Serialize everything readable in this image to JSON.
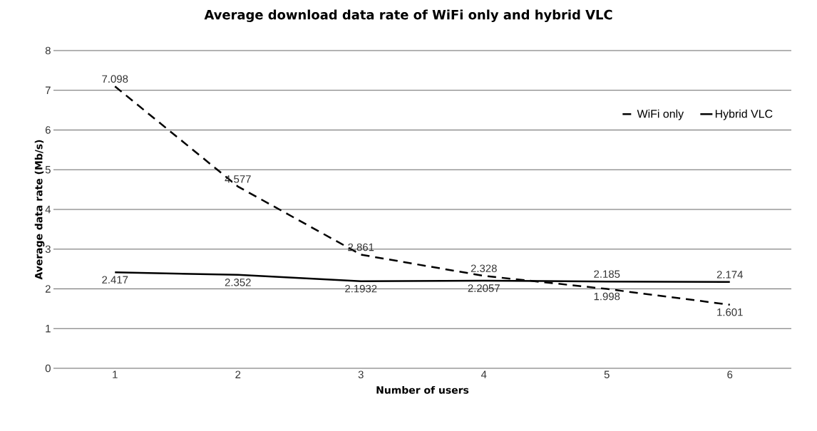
{
  "chart_data": {
    "type": "line",
    "title": "Average download data rate of WiFi only and hybrid VLC",
    "xlabel": "Number of users",
    "ylabel": "Average data rate (Mb/s)",
    "categories": [
      "1",
      "2",
      "3",
      "4",
      "5",
      "6"
    ],
    "series": [
      {
        "name": "WiFi only",
        "color": "#000000",
        "line_style": "dashed",
        "values": [
          7.098,
          4.577,
          2.861,
          2.328,
          1.998,
          1.601
        ]
      },
      {
        "name": "Hybrid VLC",
        "color": "#000000",
        "line_style": "solid",
        "values": [
          2.417,
          2.352,
          2.1932,
          2.2057,
          2.185,
          2.174
        ]
      }
    ],
    "ylim": [
      0,
      8
    ],
    "yticks": [
      0,
      1,
      2,
      3,
      4,
      5,
      6,
      7,
      8
    ],
    "grid": "y",
    "legend": "top right",
    "marker": "none",
    "data_labels": true
  }
}
